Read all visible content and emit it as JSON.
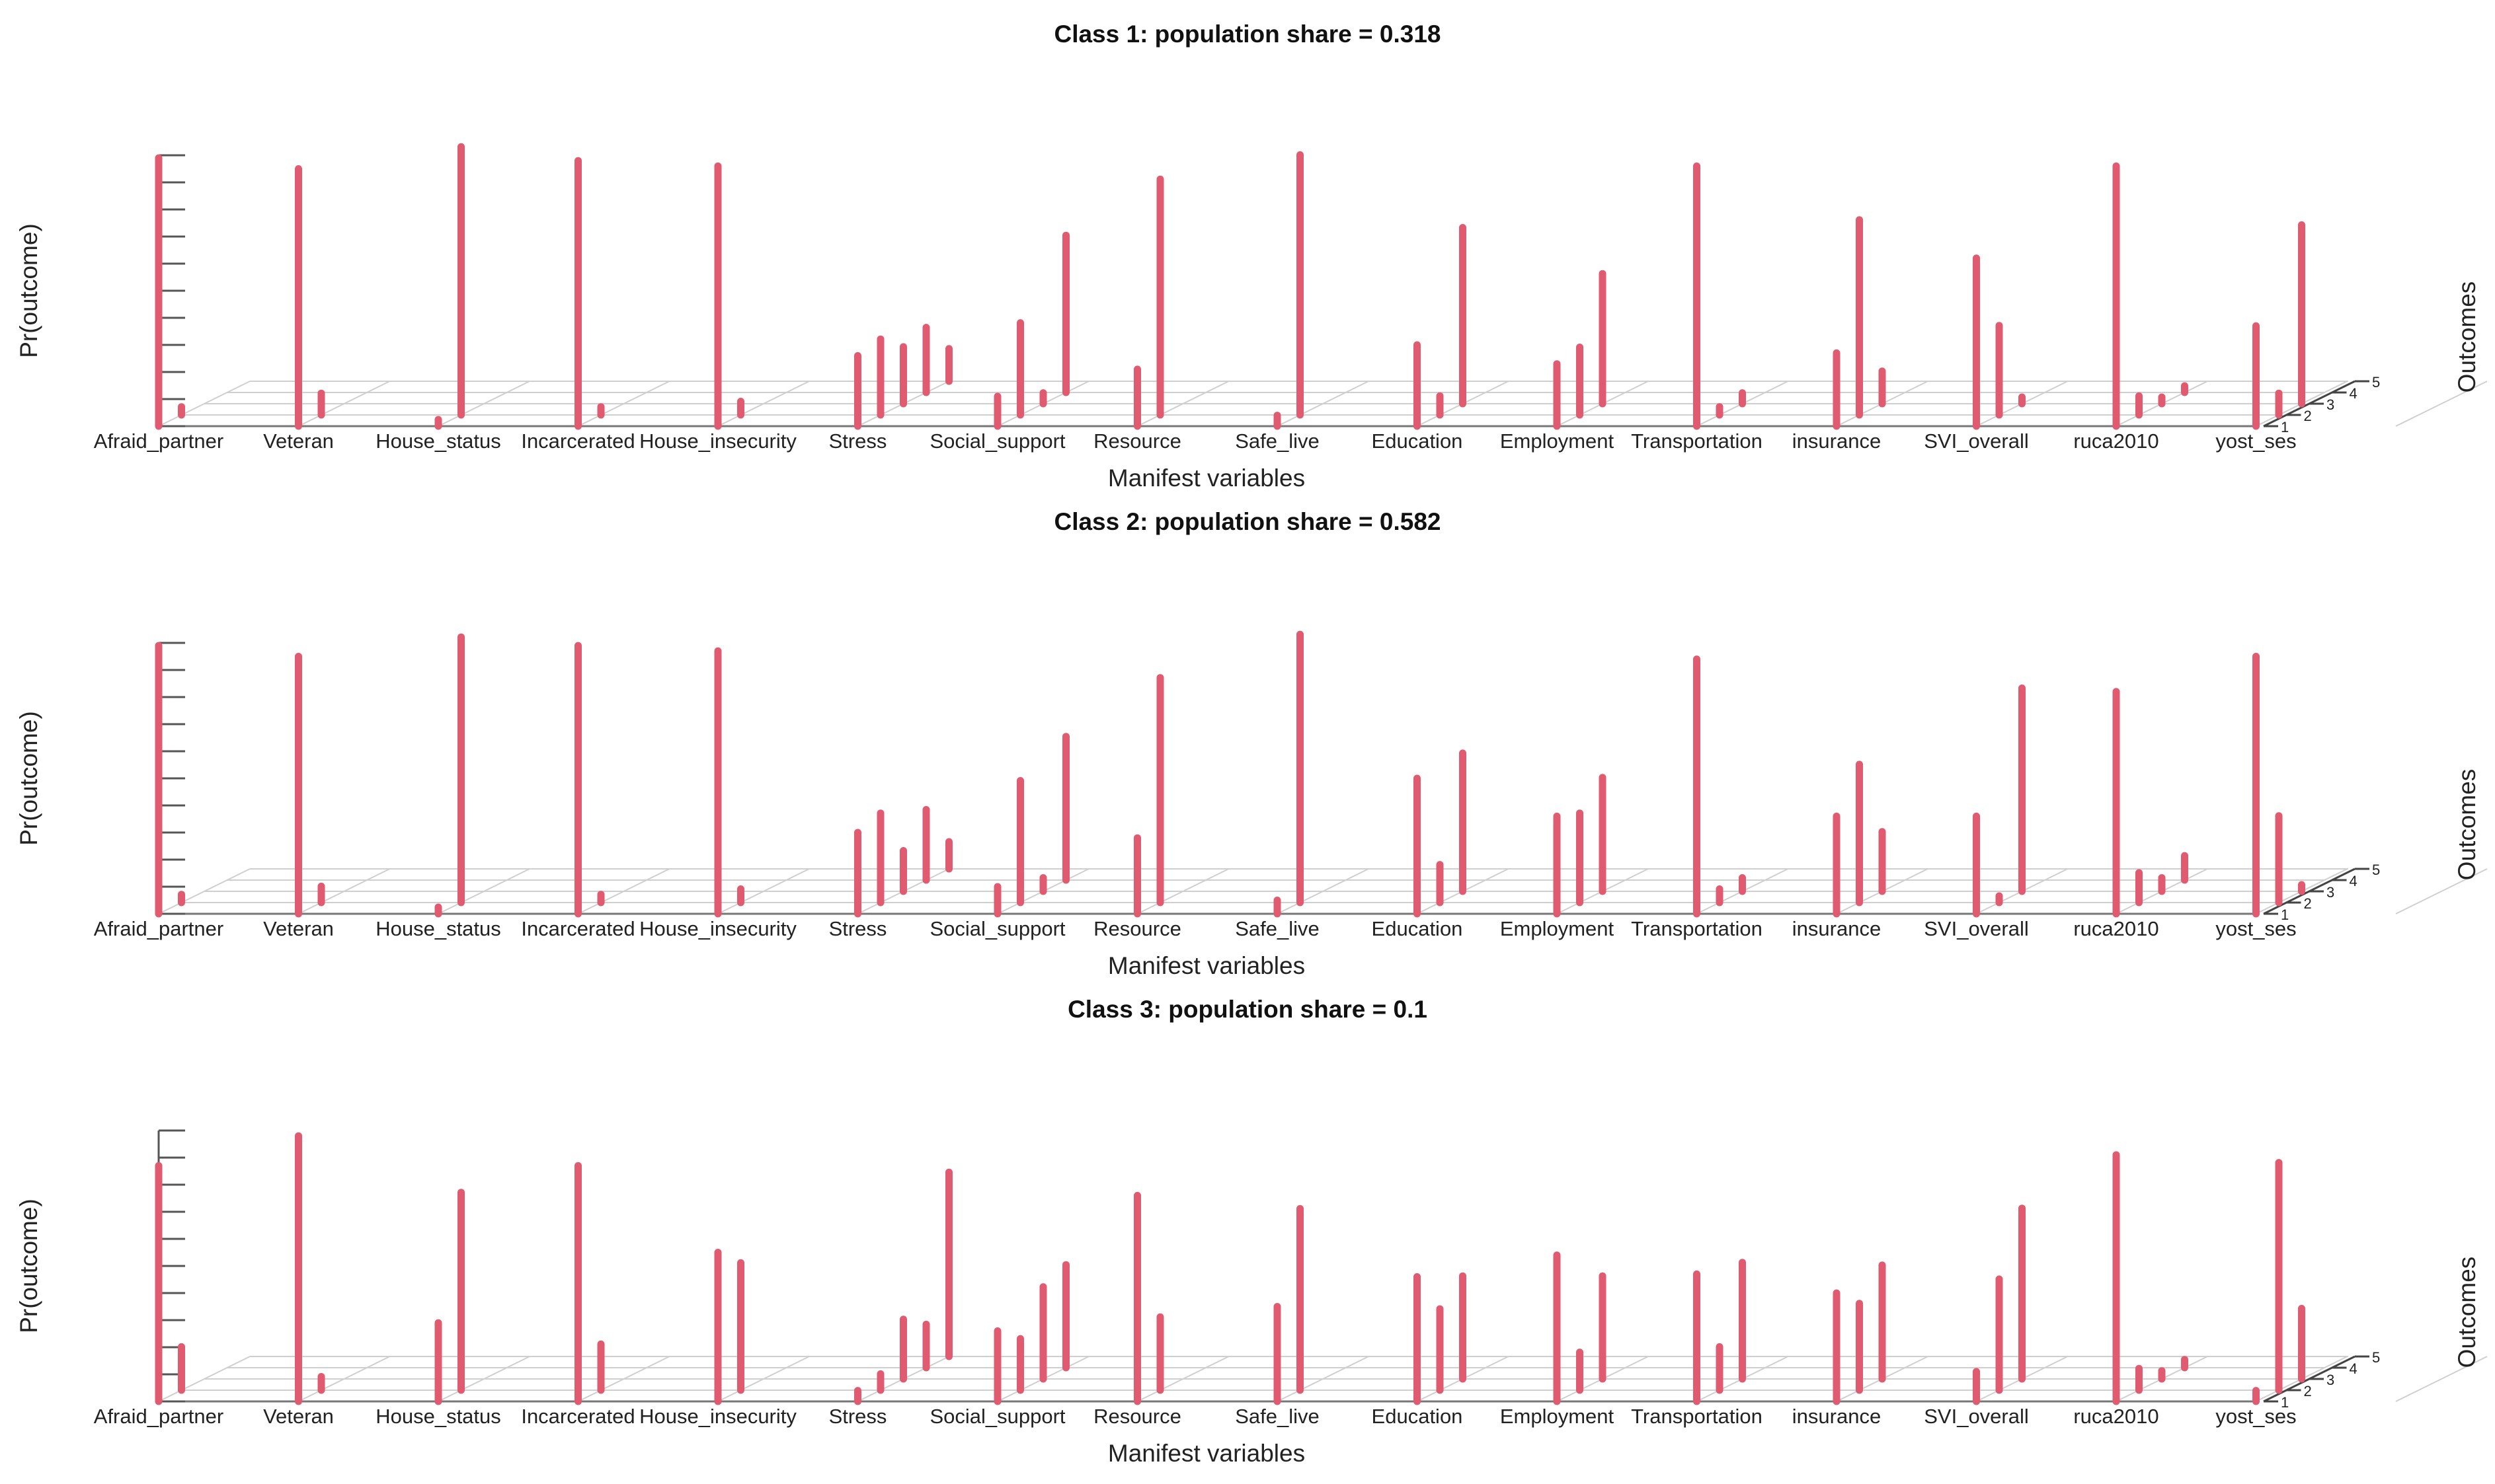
{
  "chart_data": {
    "type": "3d-bar",
    "xlabel": "Manifest variables",
    "ylabel": "Pr(outcome)",
    "zlabel": "Outcomes",
    "ylim": [
      0,
      1
    ],
    "outcome_ticks": [
      "1",
      "2",
      "3",
      "4",
      "5"
    ],
    "categories": [
      "Afraid_partner",
      "Veteran",
      "House_status",
      "Incarcerated",
      "House_insecurity",
      "Stress",
      "Social_support",
      "Resource",
      "Safe_live",
      "Education",
      "Employment",
      "Transportation",
      "insurance",
      "SVI_overall",
      "ruca2010",
      "yost_ses"
    ],
    "color": "#e05a70",
    "panels": [
      {
        "title": "Class 1: population share = 0.318",
        "values": [
          [
            0.99,
            0.03
          ],
          [
            0.95,
            0.08
          ],
          [
            0.01,
            0.99
          ],
          [
            0.98,
            0.03
          ],
          [
            0.96,
            0.05
          ],
          [
            0.26,
            0.28,
            0.21,
            0.24,
            0.12
          ],
          [
            0.11,
            0.34,
            0.04,
            0.58
          ],
          [
            0.21,
            0.87
          ],
          [
            0.04,
            0.96
          ],
          [
            0.3,
            0.07,
            0.65
          ],
          [
            0.23,
            0.25,
            0.48
          ],
          [
            0.96,
            0.03,
            0.04
          ],
          [
            0.27,
            0.72,
            0.12
          ],
          [
            0.62,
            0.33,
            0.02
          ],
          [
            0.96,
            0.07,
            0.02,
            0.02
          ],
          [
            0.37,
            0.08,
            0.66
          ]
        ]
      },
      {
        "title": "Class 2: population share = 0.582",
        "values": [
          [
            0.99,
            0.03
          ],
          [
            0.95,
            0.06
          ],
          [
            0.02,
            0.98
          ],
          [
            0.99,
            0.03
          ],
          [
            0.97,
            0.05
          ],
          [
            0.3,
            0.33,
            0.15,
            0.26,
            0.1
          ],
          [
            0.1,
            0.45,
            0.05,
            0.53
          ],
          [
            0.28,
            0.83
          ],
          [
            0.05,
            0.99
          ],
          [
            0.5,
            0.14,
            0.51
          ],
          [
            0.36,
            0.33,
            0.42
          ],
          [
            0.94,
            0.05,
            0.05
          ],
          [
            0.36,
            0.51,
            0.22
          ],
          [
            0.36,
            0.01,
            0.75
          ],
          [
            0.82,
            0.11,
            0.05,
            0.09
          ],
          [
            0.95,
            0.32,
            0.01
          ]
        ]
      },
      {
        "title": "Class 3: population share = 0.1",
        "values": [
          [
            0.87,
            0.16
          ],
          [
            0.98,
            0.05
          ],
          [
            0.29,
            0.73
          ],
          [
            0.87,
            0.17
          ],
          [
            0.55,
            0.47
          ],
          [
            0.04,
            0.06,
            0.22,
            0.16,
            0.68
          ],
          [
            0.26,
            0.19,
            0.34,
            0.38
          ],
          [
            0.76,
            0.27
          ],
          [
            0.35,
            0.67
          ],
          [
            0.46,
            0.3,
            0.38
          ],
          [
            0.54,
            0.14,
            0.38
          ],
          [
            0.47,
            0.16,
            0.43
          ],
          [
            0.4,
            0.32,
            0.42
          ],
          [
            0.11,
            0.41,
            0.63
          ],
          [
            0.91,
            0.08,
            0.03,
            0.03
          ],
          [
            0.04,
            0.84,
            0.26
          ]
        ]
      }
    ]
  }
}
